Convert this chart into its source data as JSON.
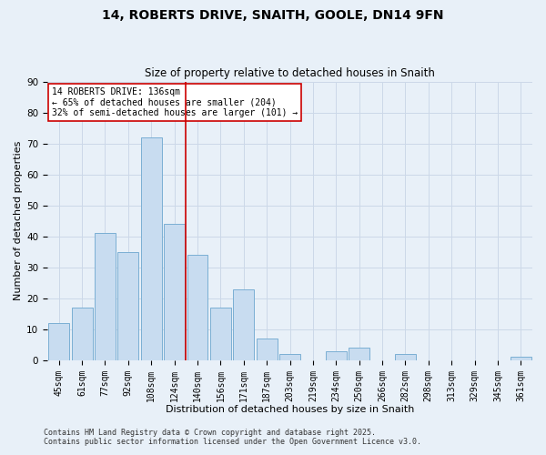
{
  "title": "14, ROBERTS DRIVE, SNAITH, GOOLE, DN14 9FN",
  "subtitle": "Size of property relative to detached houses in Snaith",
  "xlabel": "Distribution of detached houses by size in Snaith",
  "ylabel": "Number of detached properties",
  "bar_labels": [
    "45sqm",
    "61sqm",
    "77sqm",
    "92sqm",
    "108sqm",
    "124sqm",
    "140sqm",
    "156sqm",
    "171sqm",
    "187sqm",
    "203sqm",
    "219sqm",
    "234sqm",
    "250sqm",
    "266sqm",
    "282sqm",
    "298sqm",
    "313sqm",
    "329sqm",
    "345sqm",
    "361sqm"
  ],
  "bar_values": [
    12,
    17,
    41,
    35,
    72,
    44,
    34,
    17,
    23,
    7,
    2,
    0,
    3,
    4,
    0,
    2,
    0,
    0,
    0,
    0,
    1
  ],
  "bar_color": "#c8dcf0",
  "bar_edgecolor": "#7bafd4",
  "vline_x": 5.5,
  "vline_color": "#cc0000",
  "ylim": [
    0,
    90
  ],
  "yticks": [
    0,
    10,
    20,
    30,
    40,
    50,
    60,
    70,
    80,
    90
  ],
  "annotation_text": "14 ROBERTS DRIVE: 136sqm\n← 65% of detached houses are smaller (204)\n32% of semi-detached houses are larger (101) →",
  "annotation_box_color": "#ffffff",
  "annotation_box_edgecolor": "#cc0000",
  "grid_color": "#ccd8e8",
  "background_color": "#e8f0f8",
  "footer1": "Contains HM Land Registry data © Crown copyright and database right 2025.",
  "footer2": "Contains public sector information licensed under the Open Government Licence v3.0.",
  "title_fontsize": 10,
  "subtitle_fontsize": 8.5,
  "axis_label_fontsize": 8,
  "tick_fontsize": 7,
  "annotation_fontsize": 7,
  "footer_fontsize": 6
}
